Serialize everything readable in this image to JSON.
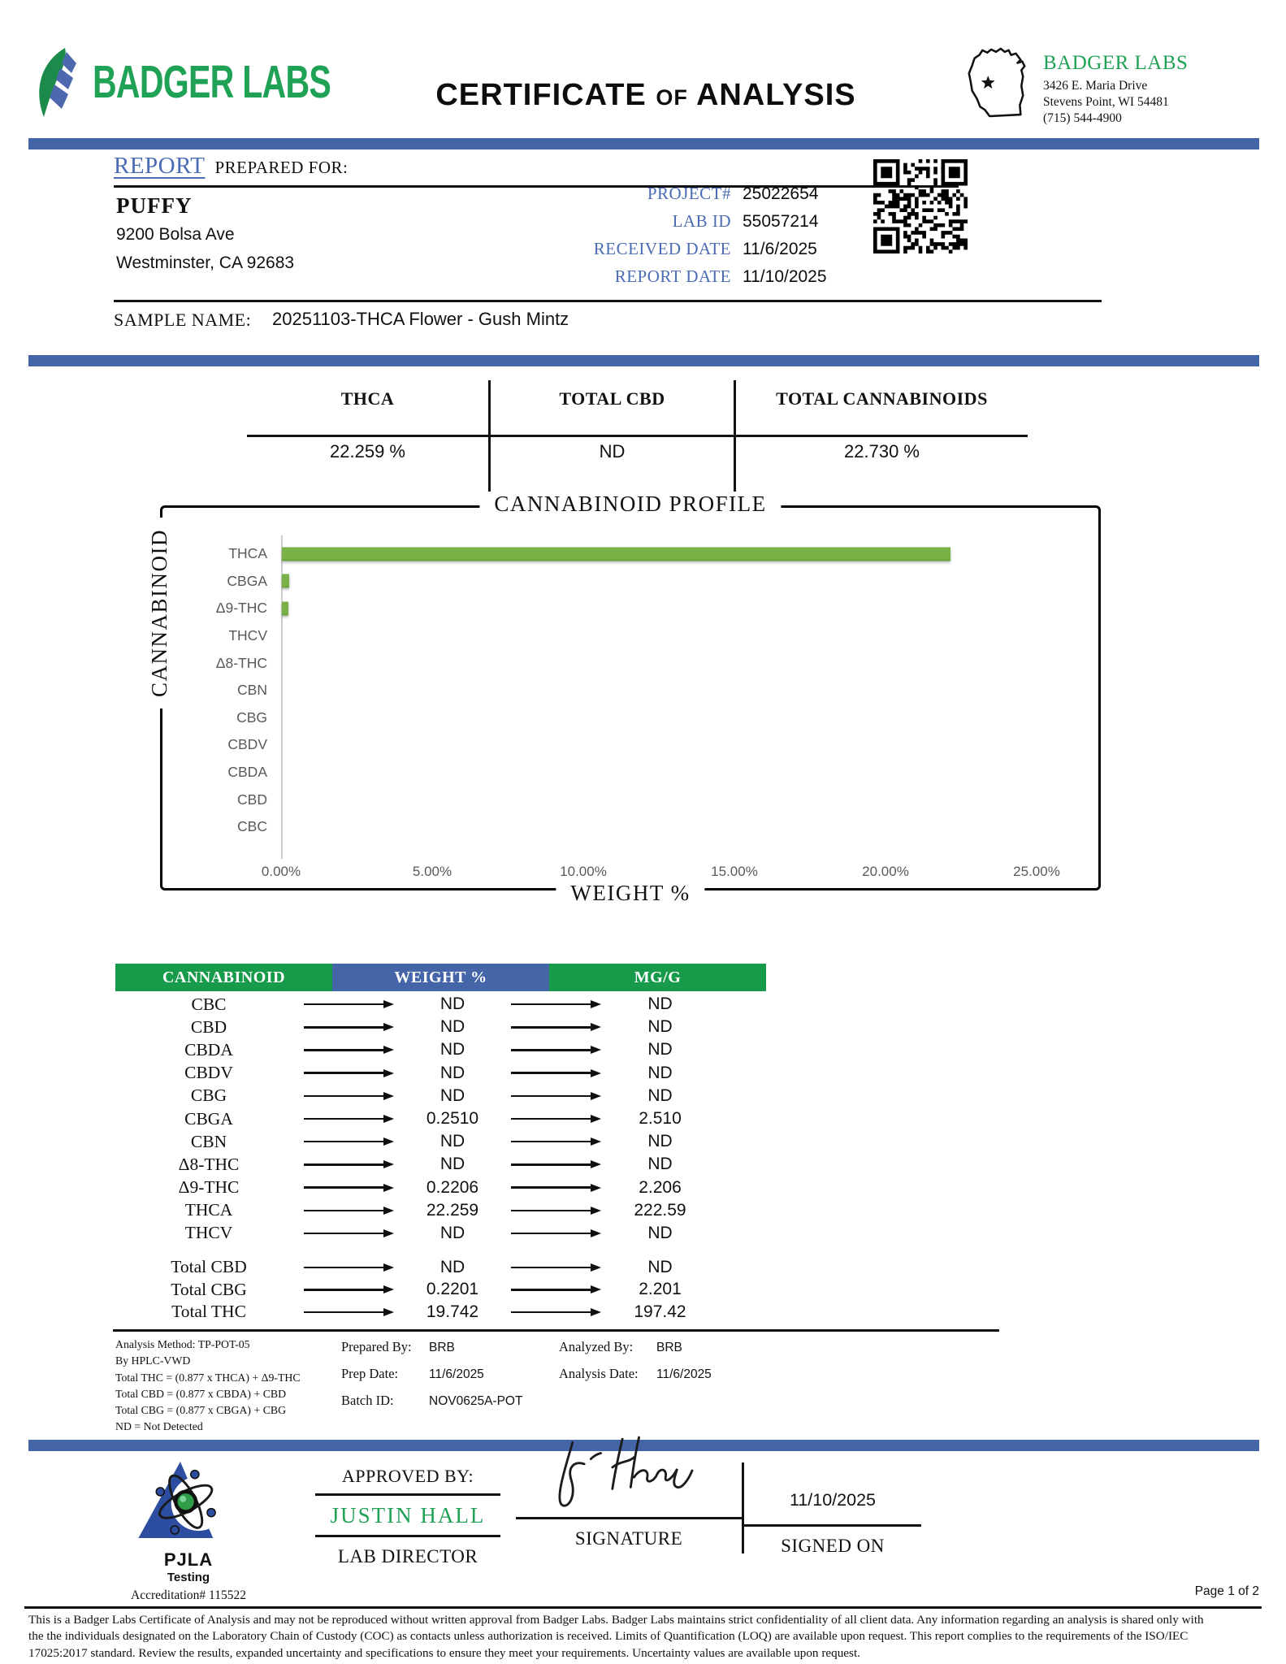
{
  "colors": {
    "accent_blue": "#4565a9",
    "label_blue": "#4a6cb5",
    "green": "#179b4b",
    "logo_green": "#1fa156",
    "bar_green": "#79b347",
    "pjla_blue": "#2d4ea0",
    "gray_text": "#595959"
  },
  "header": {
    "logo_text": "BADGER LABS",
    "title_parts": [
      "CERTIFICATE",
      "OF",
      "ANALYSIS"
    ],
    "lab_name": "BADGER LABS",
    "address_line1": "3426 E. Maria Drive",
    "address_line2": "Stevens Point, WI 54481",
    "phone": "(715) 544-4900"
  },
  "report": {
    "heading_report": "REPORT",
    "heading_rest": "PREPARED FOR:",
    "client_name": "PUFFY",
    "client_address1": "9200 Bolsa Ave",
    "client_address2": "Westminster, CA 92683",
    "fields": [
      {
        "label": "PROJECT#",
        "value": "25022654"
      },
      {
        "label": "LAB ID",
        "value": "55057214"
      },
      {
        "label": "RECEIVED DATE",
        "value": "11/6/2025"
      },
      {
        "label": "REPORT DATE",
        "value": "11/10/2025"
      }
    ],
    "sample_name_label": "SAMPLE NAME:",
    "sample_name": "20251103-THCA Flower - Gush Mintz"
  },
  "summary": {
    "columns": [
      {
        "label": "THCA",
        "value": "22.259 %"
      },
      {
        "label": "TOTAL CBD",
        "value": "ND"
      },
      {
        "label": "TOTAL CANNABINOIDS",
        "value": "22.730 %"
      }
    ]
  },
  "chart_data": {
    "type": "bar",
    "orientation": "horizontal",
    "title": "CANNABINOID PROFILE",
    "xlabel": "WEIGHT %",
    "ylabel": "CANNABINOID",
    "categories": [
      "THCA",
      "CBGA",
      "Δ9-THC",
      "THCV",
      "Δ8-THC",
      "CBN",
      "CBG",
      "CBDV",
      "CBDA",
      "CBD",
      "CBC"
    ],
    "values": [
      22.259,
      0.251,
      0.2206,
      0,
      0,
      0,
      0,
      0,
      0,
      0,
      0
    ],
    "xlim": [
      0,
      25
    ],
    "xticks": [
      "0.00%",
      "5.00%",
      "10.00%",
      "15.00%",
      "20.00%",
      "25.00%"
    ],
    "grid": false,
    "legend": false,
    "bar_color": "#79b347"
  },
  "table": {
    "headers": [
      "CANNABINOID",
      "WEIGHT %",
      "MG/G"
    ],
    "rows": [
      {
        "name": "CBC",
        "weight": "ND",
        "mgg": "ND"
      },
      {
        "name": "CBD",
        "weight": "ND",
        "mgg": "ND"
      },
      {
        "name": "CBDA",
        "weight": "ND",
        "mgg": "ND"
      },
      {
        "name": "CBDV",
        "weight": "ND",
        "mgg": "ND"
      },
      {
        "name": "CBG",
        "weight": "ND",
        "mgg": "ND"
      },
      {
        "name": "CBGA",
        "weight": "0.2510",
        "mgg": "2.510"
      },
      {
        "name": "CBN",
        "weight": "ND",
        "mgg": "ND"
      },
      {
        "name": "Δ8-THC",
        "weight": "ND",
        "mgg": "ND"
      },
      {
        "name": "Δ9-THC",
        "weight": "0.2206",
        "mgg": "2.206"
      },
      {
        "name": "THCA",
        "weight": "22.259",
        "mgg": "222.59"
      },
      {
        "name": "THCV",
        "weight": "ND",
        "mgg": "ND"
      }
    ],
    "total_rows": [
      {
        "name": "Total CBD",
        "weight": "ND",
        "mgg": "ND"
      },
      {
        "name": "Total CBG",
        "weight": "0.2201",
        "mgg": "2.201"
      },
      {
        "name": "Total THC",
        "weight": "19.742",
        "mgg": "197.42"
      }
    ]
  },
  "notes": {
    "method_lines": [
      "Analysis Method: TP-POT-05",
      "By HPLC-VWD",
      "Total THC = (0.877 x  THCA) + Δ9-THC",
      "Total CBD = (0.877 x  CBDA) + CBD",
      "Total CBG = (0.877 x  CBGA) + CBG",
      "ND = Not Detected"
    ],
    "prepared_by_label": "Prepared By:",
    "prepared_by": "BRB",
    "prep_date_label": "Prep Date:",
    "prep_date": "11/6/2025",
    "batch_id_label": "Batch ID:",
    "batch_id": "NOV0625A-POT",
    "analyzed_by_label": "Analyzed By:",
    "analyzed_by": "BRB",
    "analysis_date_label": "Analysis Date:",
    "analysis_date": "11/6/2025"
  },
  "footer": {
    "pjla_name": "PJLA",
    "pjla_sub": "Testing",
    "pjla_accreditation": "Accreditation# 115522",
    "approved_by_label": "APPROVED BY:",
    "approver": "JUSTIN HALL",
    "approver_title": "LAB DIRECTOR",
    "signature_label": "SIGNATURE",
    "signed_on_date": "11/10/2025",
    "signed_on_label": "SIGNED ON",
    "page_label": "Page 1 of 2",
    "disclaimer_lines": [
      "This is a Badger Labs Certificate of Analysis and may not be reproduced without written approval from Badger Labs. Badger Labs maintains strict confidentiality of all client data. Any information regarding an analysis is shared only with",
      "the the individuals designated on the Laboratory Chain of Custody (COC) as contacts unless authorization is received. Limits of Quantification (LOQ) are available upon request. This report complies to the requirements of the ISO/IEC",
      "17025:2017 standard. Review the results, expanded uncertainty and specifications to ensure they meet your requirements. Uncertainty values are available upon request."
    ]
  }
}
